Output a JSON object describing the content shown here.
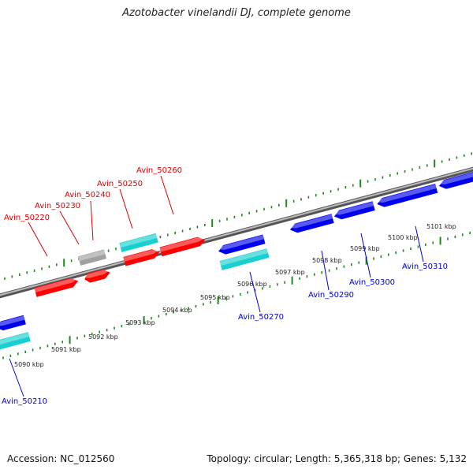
{
  "title": "Azotobacter vinelandii DJ, complete genome",
  "footer": {
    "accession": "Accession: NC_012560",
    "topology": "Topology: circular; Length: 5,365,318 bp; Genes: 5,132"
  },
  "colors": {
    "forward_gene": "#ff0000",
    "reverse_gene": "#0000ee",
    "rna_gene": "#19d0d0",
    "other_gene": "#a0a0a0",
    "ticks": "#1a8a1a",
    "forward_label": "#dd0000",
    "reverse_label": "#0000cc"
  },
  "scale_labels": [
    "5090 kbp",
    "5091 kbp",
    "5092 kbp",
    "5093 kbp",
    "5094 kbp",
    "5095 kbp",
    "5096 kbp",
    "5097 kbp",
    "5098 kbp",
    "5099 kbp",
    "5100 kbp",
    "5101 kbp"
  ],
  "forward_labels": [
    "Avin_50220",
    "Avin_50230",
    "Avin_50240",
    "Avin_50250",
    "Avin_50260"
  ],
  "reverse_labels": [
    "Avin_50210",
    "Avin_50270",
    "Avin_50290",
    "Avin_50300",
    "Avin_50310"
  ]
}
